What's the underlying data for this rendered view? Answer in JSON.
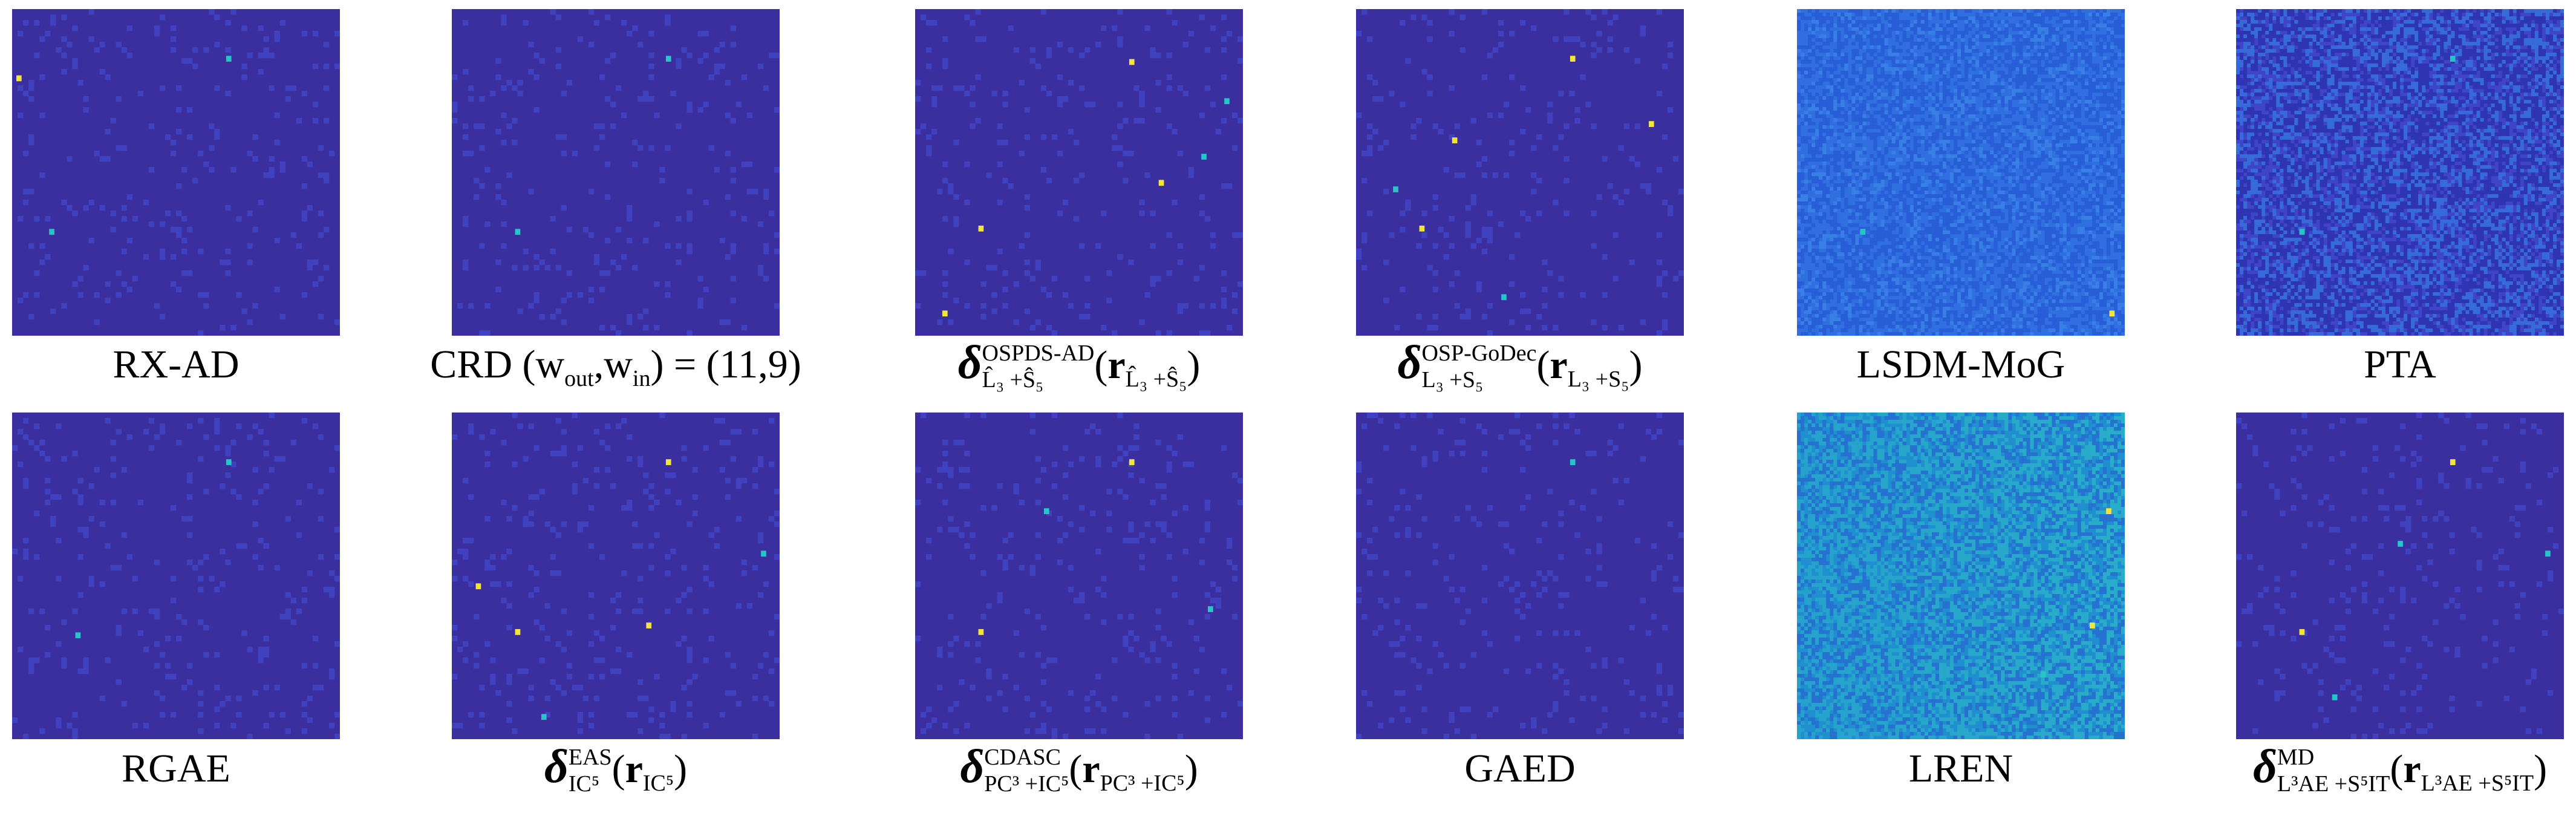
{
  "colors": {
    "background_dark": "#3b2fa0",
    "background_mid": "#3f44c8",
    "lsdm_bg": "#2f6fe0",
    "lren_bg": "#1f8fd0",
    "highlight_cyan": "#26c6c6",
    "highlight_yellow": "#f2e53a"
  },
  "captions": {
    "rx_ad": "RX-AD",
    "crd_prefix": "CRD",
    "crd_w_out": "w",
    "crd_w_out_sub": "out",
    "crd_w_in": "w",
    "crd_w_in_sub": "in",
    "crd_value": "= (11,9)",
    "delta": "δ",
    "r": "r",
    "ospds_sup": "OSPDS-AD",
    "ospds_sub": "L̂₃ +Ŝ₅",
    "ospds_arg_sub": "L̂₃ +Ŝ₅",
    "ospgodec_sup": "OSP-GoDec",
    "ospgodec_sub": "L₃ +S₅",
    "ospgodec_arg_sub": "L₃ +S₅",
    "lsdm_mog": "LSDM-MoG",
    "pta": "PTA",
    "rgae": "RGAE",
    "eas_sup": "EAS",
    "eas_sub": "IC⁵",
    "eas_arg_sub": "IC⁵",
    "cdasc_sup": "CDASC",
    "cdasc_sub": "PC³ +IC⁵",
    "cdasc_arg_sub": "PC³ +IC⁵",
    "gaed": "GAED",
    "lren": "LREN",
    "md_sup": "MD",
    "md_sub": "L³AE +S⁵IT",
    "md_arg_sub": "L³AE +S⁵IT"
  },
  "panels": [
    {
      "id": "rx-ad",
      "theme": "dark"
    },
    {
      "id": "crd",
      "theme": "dark"
    },
    {
      "id": "ospds-ad",
      "theme": "dark"
    },
    {
      "id": "osp-godec",
      "theme": "dark"
    },
    {
      "id": "lsdm-mog",
      "theme": "lsdm"
    },
    {
      "id": "pta",
      "theme": "pta"
    },
    {
      "id": "rgae",
      "theme": "dark"
    },
    {
      "id": "eas",
      "theme": "dark"
    },
    {
      "id": "cdasc",
      "theme": "dark"
    },
    {
      "id": "gaed",
      "theme": "dark"
    },
    {
      "id": "lren",
      "theme": "lren"
    },
    {
      "id": "md",
      "theme": "dark"
    }
  ]
}
